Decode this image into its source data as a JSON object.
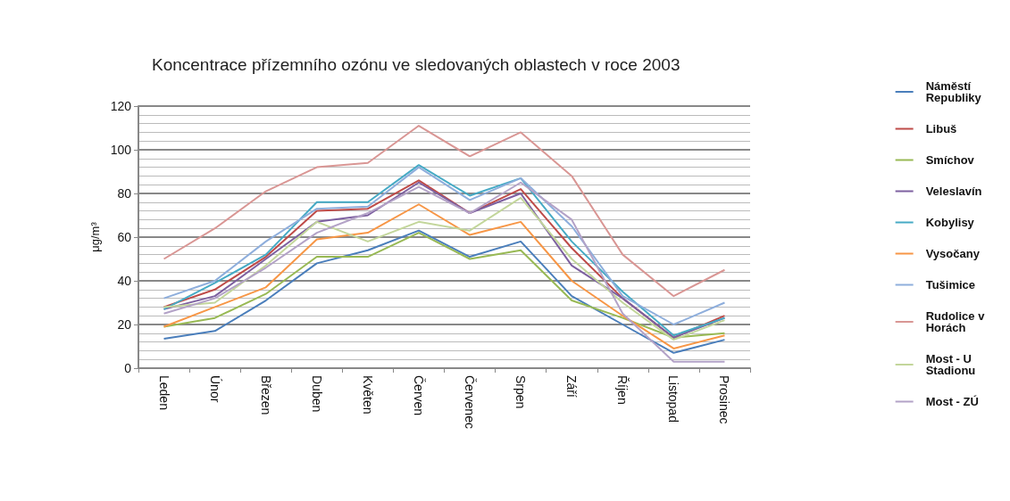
{
  "chart_data": {
    "type": "line",
    "title": "Koncentrace přízemního ozónu ve sledovaných oblastech v roce 2003",
    "ylabel": "μg/m³",
    "categories": [
      "Leden",
      "Únor",
      "Březen",
      "Duben",
      "Květen",
      "Červen",
      "Červenec",
      "Srpen",
      "Září",
      "Říjen",
      "Listopad",
      "Prosinec"
    ],
    "ylim": [
      0,
      120
    ],
    "yticks": [
      0,
      20,
      40,
      60,
      80,
      100,
      120
    ],
    "grid": "y",
    "legend": "right",
    "marker": "none",
    "line_style": "solid",
    "series": [
      {
        "name": "Náměstí Republiky",
        "color": "#4a7ebb",
        "values": [
          13.5,
          17,
          31,
          48,
          54,
          63,
          51,
          58,
          33,
          20,
          7,
          13
        ]
      },
      {
        "name": "Libuš",
        "color": "#be4b48",
        "values": [
          28,
          36,
          51,
          72,
          73,
          86,
          71,
          82,
          55,
          32,
          14,
          24
        ]
      },
      {
        "name": "Smíchov",
        "color": "#98b954",
        "values": [
          19,
          23,
          34,
          51,
          51,
          62,
          50,
          54,
          31,
          23,
          14,
          16
        ]
      },
      {
        "name": "Veleslavín",
        "color": "#7d60a0",
        "values": [
          27,
          33,
          50,
          67,
          70,
          85,
          71,
          80,
          47,
          32,
          14,
          23
        ]
      },
      {
        "name": "Kobylisy",
        "color": "#46aac5",
        "values": [
          27,
          39,
          52,
          76,
          76,
          93,
          79,
          87,
          58,
          35,
          15,
          23
        ]
      },
      {
        "name": "Vysočany",
        "color": "#f79646",
        "values": [
          19,
          28,
          37,
          59,
          62,
          75,
          61,
          67,
          40,
          24,
          9,
          15
        ]
      },
      {
        "name": "Tušimice",
        "color": "#8eaedc",
        "values": [
          32,
          40,
          58,
          73,
          74,
          92,
          77,
          87,
          65,
          33,
          20,
          30
        ]
      },
      {
        "name": "Rudolice v Horách",
        "color": "#d99694",
        "values": [
          50,
          64,
          81,
          92,
          94,
          111,
          97,
          108,
          88,
          52,
          33,
          45
        ]
      },
      {
        "name": "Most - U Stadionu",
        "color": "#c3d69b",
        "values": [
          28,
          30,
          47,
          67,
          58,
          67,
          63,
          78,
          50,
          30,
          13,
          22
        ]
      },
      {
        "name": "Most - ZÚ",
        "color": "#b3a2c7",
        "values": [
          25,
          32,
          46,
          62,
          71,
          83,
          71,
          85,
          68,
          25,
          3,
          3
        ]
      }
    ]
  }
}
